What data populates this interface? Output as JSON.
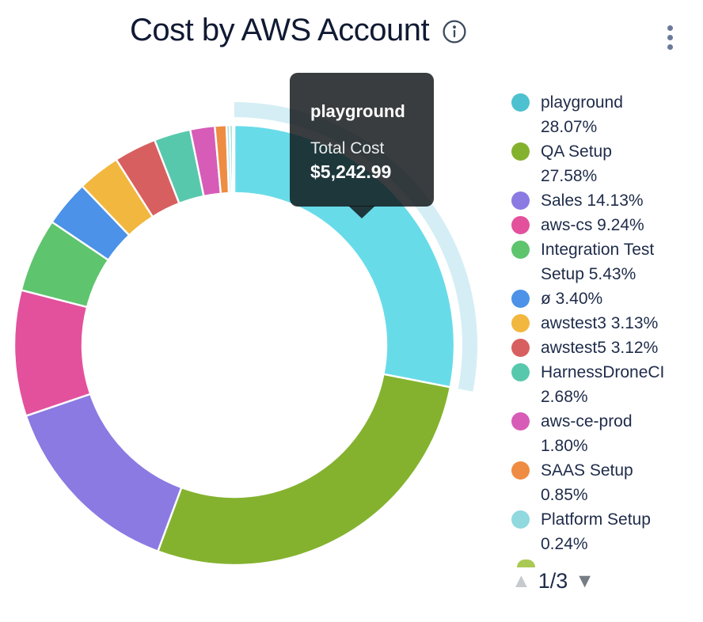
{
  "header": {
    "title": "Cost by AWS Account"
  },
  "tooltip": {
    "title": "playground",
    "label": "Total Cost",
    "value": "$5,242.99"
  },
  "chart_data": {
    "type": "donut",
    "title": "Cost by AWS Account",
    "unit": "percent of total cost",
    "hovered_slice": "playground",
    "hovered_slice_total_cost": "$5,242.99",
    "legend_position": "right",
    "series": [
      {
        "name": "playground",
        "value": 28.07,
        "pct_label": "28.07%",
        "color": "#4dc1cf",
        "slice_color": "#68dbe9",
        "highlighted": true,
        "highlight_color": "#d5eef5",
        "lines": [
          "playground",
          "28.07%"
        ]
      },
      {
        "name": "QA Setup",
        "value": 27.58,
        "pct_label": "27.58%",
        "color": "#84b22f",
        "lines": [
          "QA Setup",
          "27.58%"
        ]
      },
      {
        "name": "Sales",
        "value": 14.13,
        "pct_label": "14.13%",
        "color": "#8a7ae2",
        "lines": [
          "Sales 14.13%"
        ]
      },
      {
        "name": "aws-cs",
        "value": 9.24,
        "pct_label": "9.24%",
        "color": "#e3519d",
        "lines": [
          "aws-cs 9.24%"
        ]
      },
      {
        "name": "Integration Test Setup",
        "value": 5.43,
        "pct_label": "5.43%",
        "color": "#5ec46e",
        "lines": [
          "Integration Test",
          "Setup 5.43%"
        ]
      },
      {
        "name": "ø",
        "value": 3.4,
        "pct_label": "3.40%",
        "color": "#4b92e8",
        "lines": [
          "ø 3.40%"
        ]
      },
      {
        "name": "awstest3",
        "value": 3.13,
        "pct_label": "3.13%",
        "color": "#f2b73f",
        "lines": [
          "awstest3 3.13%"
        ]
      },
      {
        "name": "awstest5",
        "value": 3.12,
        "pct_label": "3.12%",
        "color": "#d85f5f",
        "lines": [
          "awstest5 3.12%"
        ]
      },
      {
        "name": "HarnessDroneCI",
        "value": 2.68,
        "pct_label": "2.68%",
        "color": "#58c8ad",
        "lines": [
          "HarnessDroneCI",
          "2.68%"
        ]
      },
      {
        "name": "aws-ce-prod",
        "value": 1.8,
        "pct_label": "1.80%",
        "color": "#d75cb7",
        "lines": [
          "aws-ce-prod",
          "1.80%"
        ]
      },
      {
        "name": "SAAS Setup",
        "value": 0.85,
        "pct_label": "0.85%",
        "color": "#ee8c43",
        "lines": [
          "SAAS Setup",
          "0.85%"
        ]
      },
      {
        "name": "Platform Setup",
        "value": 0.24,
        "pct_label": "0.24%",
        "color": "#8fd9df",
        "slice_color": "#a5e4ec",
        "lines": [
          "Platform Setup",
          "0.24%"
        ]
      }
    ],
    "unlabeled_slivers": [
      {
        "value": 0.2,
        "color": "#6ccbb0"
      },
      {
        "value": 0.13,
        "color": "#b5c94f"
      }
    ]
  },
  "legend": {
    "next_item_peek_color": "#a9c954",
    "pagination": {
      "up_arrow": "▲",
      "page_indicator": "1/3",
      "down_arrow": "▼"
    }
  }
}
